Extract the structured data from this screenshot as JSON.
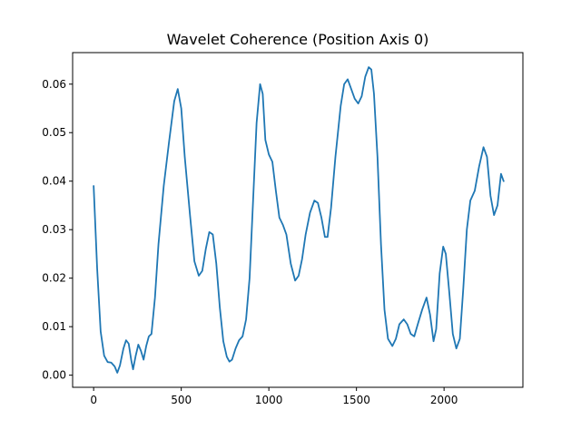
{
  "chart_data": {
    "type": "line",
    "title": "Wavelet Coherence (Position Axis 0)",
    "xlabel": "",
    "ylabel": "",
    "xlim": [
      -120,
      2450
    ],
    "ylim": [
      -0.0025,
      0.0665
    ],
    "x_ticks": [
      0,
      500,
      1000,
      1500,
      2000
    ],
    "x_tick_labels": [
      "0",
      "500",
      "1000",
      "1500",
      "2000"
    ],
    "y_ticks": [
      0.0,
      0.01,
      0.02,
      0.03,
      0.04,
      0.05,
      0.06
    ],
    "y_tick_labels": [
      "0.00",
      "0.01",
      "0.02",
      "0.03",
      "0.04",
      "0.05",
      "0.06"
    ],
    "grid": false,
    "legend": "none",
    "series": [
      {
        "color": "#1f77b4",
        "points": [
          [
            0,
            0.039
          ],
          [
            20,
            0.022
          ],
          [
            40,
            0.009
          ],
          [
            60,
            0.004
          ],
          [
            80,
            0.0027
          ],
          [
            100,
            0.0026
          ],
          [
            120,
            0.0018
          ],
          [
            135,
            0.0005
          ],
          [
            150,
            0.002
          ],
          [
            170,
            0.0055
          ],
          [
            185,
            0.0072
          ],
          [
            200,
            0.0065
          ],
          [
            215,
            0.003
          ],
          [
            225,
            0.0012
          ],
          [
            240,
            0.004
          ],
          [
            255,
            0.0063
          ],
          [
            270,
            0.005
          ],
          [
            285,
            0.0032
          ],
          [
            300,
            0.006
          ],
          [
            315,
            0.008
          ],
          [
            330,
            0.0085
          ],
          [
            350,
            0.016
          ],
          [
            370,
            0.027
          ],
          [
            400,
            0.039
          ],
          [
            430,
            0.048
          ],
          [
            460,
            0.0565
          ],
          [
            480,
            0.059
          ],
          [
            500,
            0.055
          ],
          [
            520,
            0.045
          ],
          [
            550,
            0.033
          ],
          [
            575,
            0.0235
          ],
          [
            600,
            0.0205
          ],
          [
            620,
            0.0215
          ],
          [
            640,
            0.026
          ],
          [
            660,
            0.0295
          ],
          [
            680,
            0.029
          ],
          [
            700,
            0.023
          ],
          [
            720,
            0.014
          ],
          [
            740,
            0.007
          ],
          [
            760,
            0.0038
          ],
          [
            775,
            0.0028
          ],
          [
            790,
            0.0032
          ],
          [
            810,
            0.0055
          ],
          [
            830,
            0.0072
          ],
          [
            850,
            0.008
          ],
          [
            870,
            0.0115
          ],
          [
            890,
            0.02
          ],
          [
            910,
            0.036
          ],
          [
            930,
            0.052
          ],
          [
            950,
            0.06
          ],
          [
            965,
            0.058
          ],
          [
            980,
            0.0485
          ],
          [
            1000,
            0.0455
          ],
          [
            1020,
            0.044
          ],
          [
            1040,
            0.038
          ],
          [
            1060,
            0.0325
          ],
          [
            1080,
            0.031
          ],
          [
            1100,
            0.029
          ],
          [
            1125,
            0.023
          ],
          [
            1150,
            0.0195
          ],
          [
            1170,
            0.0205
          ],
          [
            1190,
            0.024
          ],
          [
            1210,
            0.029
          ],
          [
            1235,
            0.0335
          ],
          [
            1260,
            0.036
          ],
          [
            1280,
            0.0355
          ],
          [
            1300,
            0.0325
          ],
          [
            1320,
            0.0285
          ],
          [
            1335,
            0.0285
          ],
          [
            1355,
            0.0345
          ],
          [
            1380,
            0.045
          ],
          [
            1410,
            0.0555
          ],
          [
            1430,
            0.06
          ],
          [
            1450,
            0.061
          ],
          [
            1470,
            0.059
          ],
          [
            1490,
            0.057
          ],
          [
            1510,
            0.056
          ],
          [
            1530,
            0.0575
          ],
          [
            1550,
            0.0615
          ],
          [
            1570,
            0.0635
          ],
          [
            1585,
            0.063
          ],
          [
            1600,
            0.058
          ],
          [
            1620,
            0.045
          ],
          [
            1640,
            0.027
          ],
          [
            1660,
            0.0135
          ],
          [
            1680,
            0.0075
          ],
          [
            1705,
            0.006
          ],
          [
            1725,
            0.0075
          ],
          [
            1745,
            0.0105
          ],
          [
            1770,
            0.0115
          ],
          [
            1790,
            0.0105
          ],
          [
            1810,
            0.0085
          ],
          [
            1830,
            0.008
          ],
          [
            1850,
            0.0105
          ],
          [
            1875,
            0.0135
          ],
          [
            1900,
            0.016
          ],
          [
            1920,
            0.0125
          ],
          [
            1940,
            0.007
          ],
          [
            1955,
            0.0095
          ],
          [
            1975,
            0.021
          ],
          [
            1995,
            0.0265
          ],
          [
            2010,
            0.025
          ],
          [
            2030,
            0.017
          ],
          [
            2050,
            0.0085
          ],
          [
            2070,
            0.0055
          ],
          [
            2090,
            0.0075
          ],
          [
            2110,
            0.018
          ],
          [
            2130,
            0.03
          ],
          [
            2150,
            0.036
          ],
          [
            2175,
            0.038
          ],
          [
            2200,
            0.043
          ],
          [
            2225,
            0.047
          ],
          [
            2245,
            0.045
          ],
          [
            2265,
            0.037
          ],
          [
            2285,
            0.033
          ],
          [
            2305,
            0.035
          ],
          [
            2325,
            0.0415
          ],
          [
            2340,
            0.04
          ]
        ]
      }
    ]
  }
}
